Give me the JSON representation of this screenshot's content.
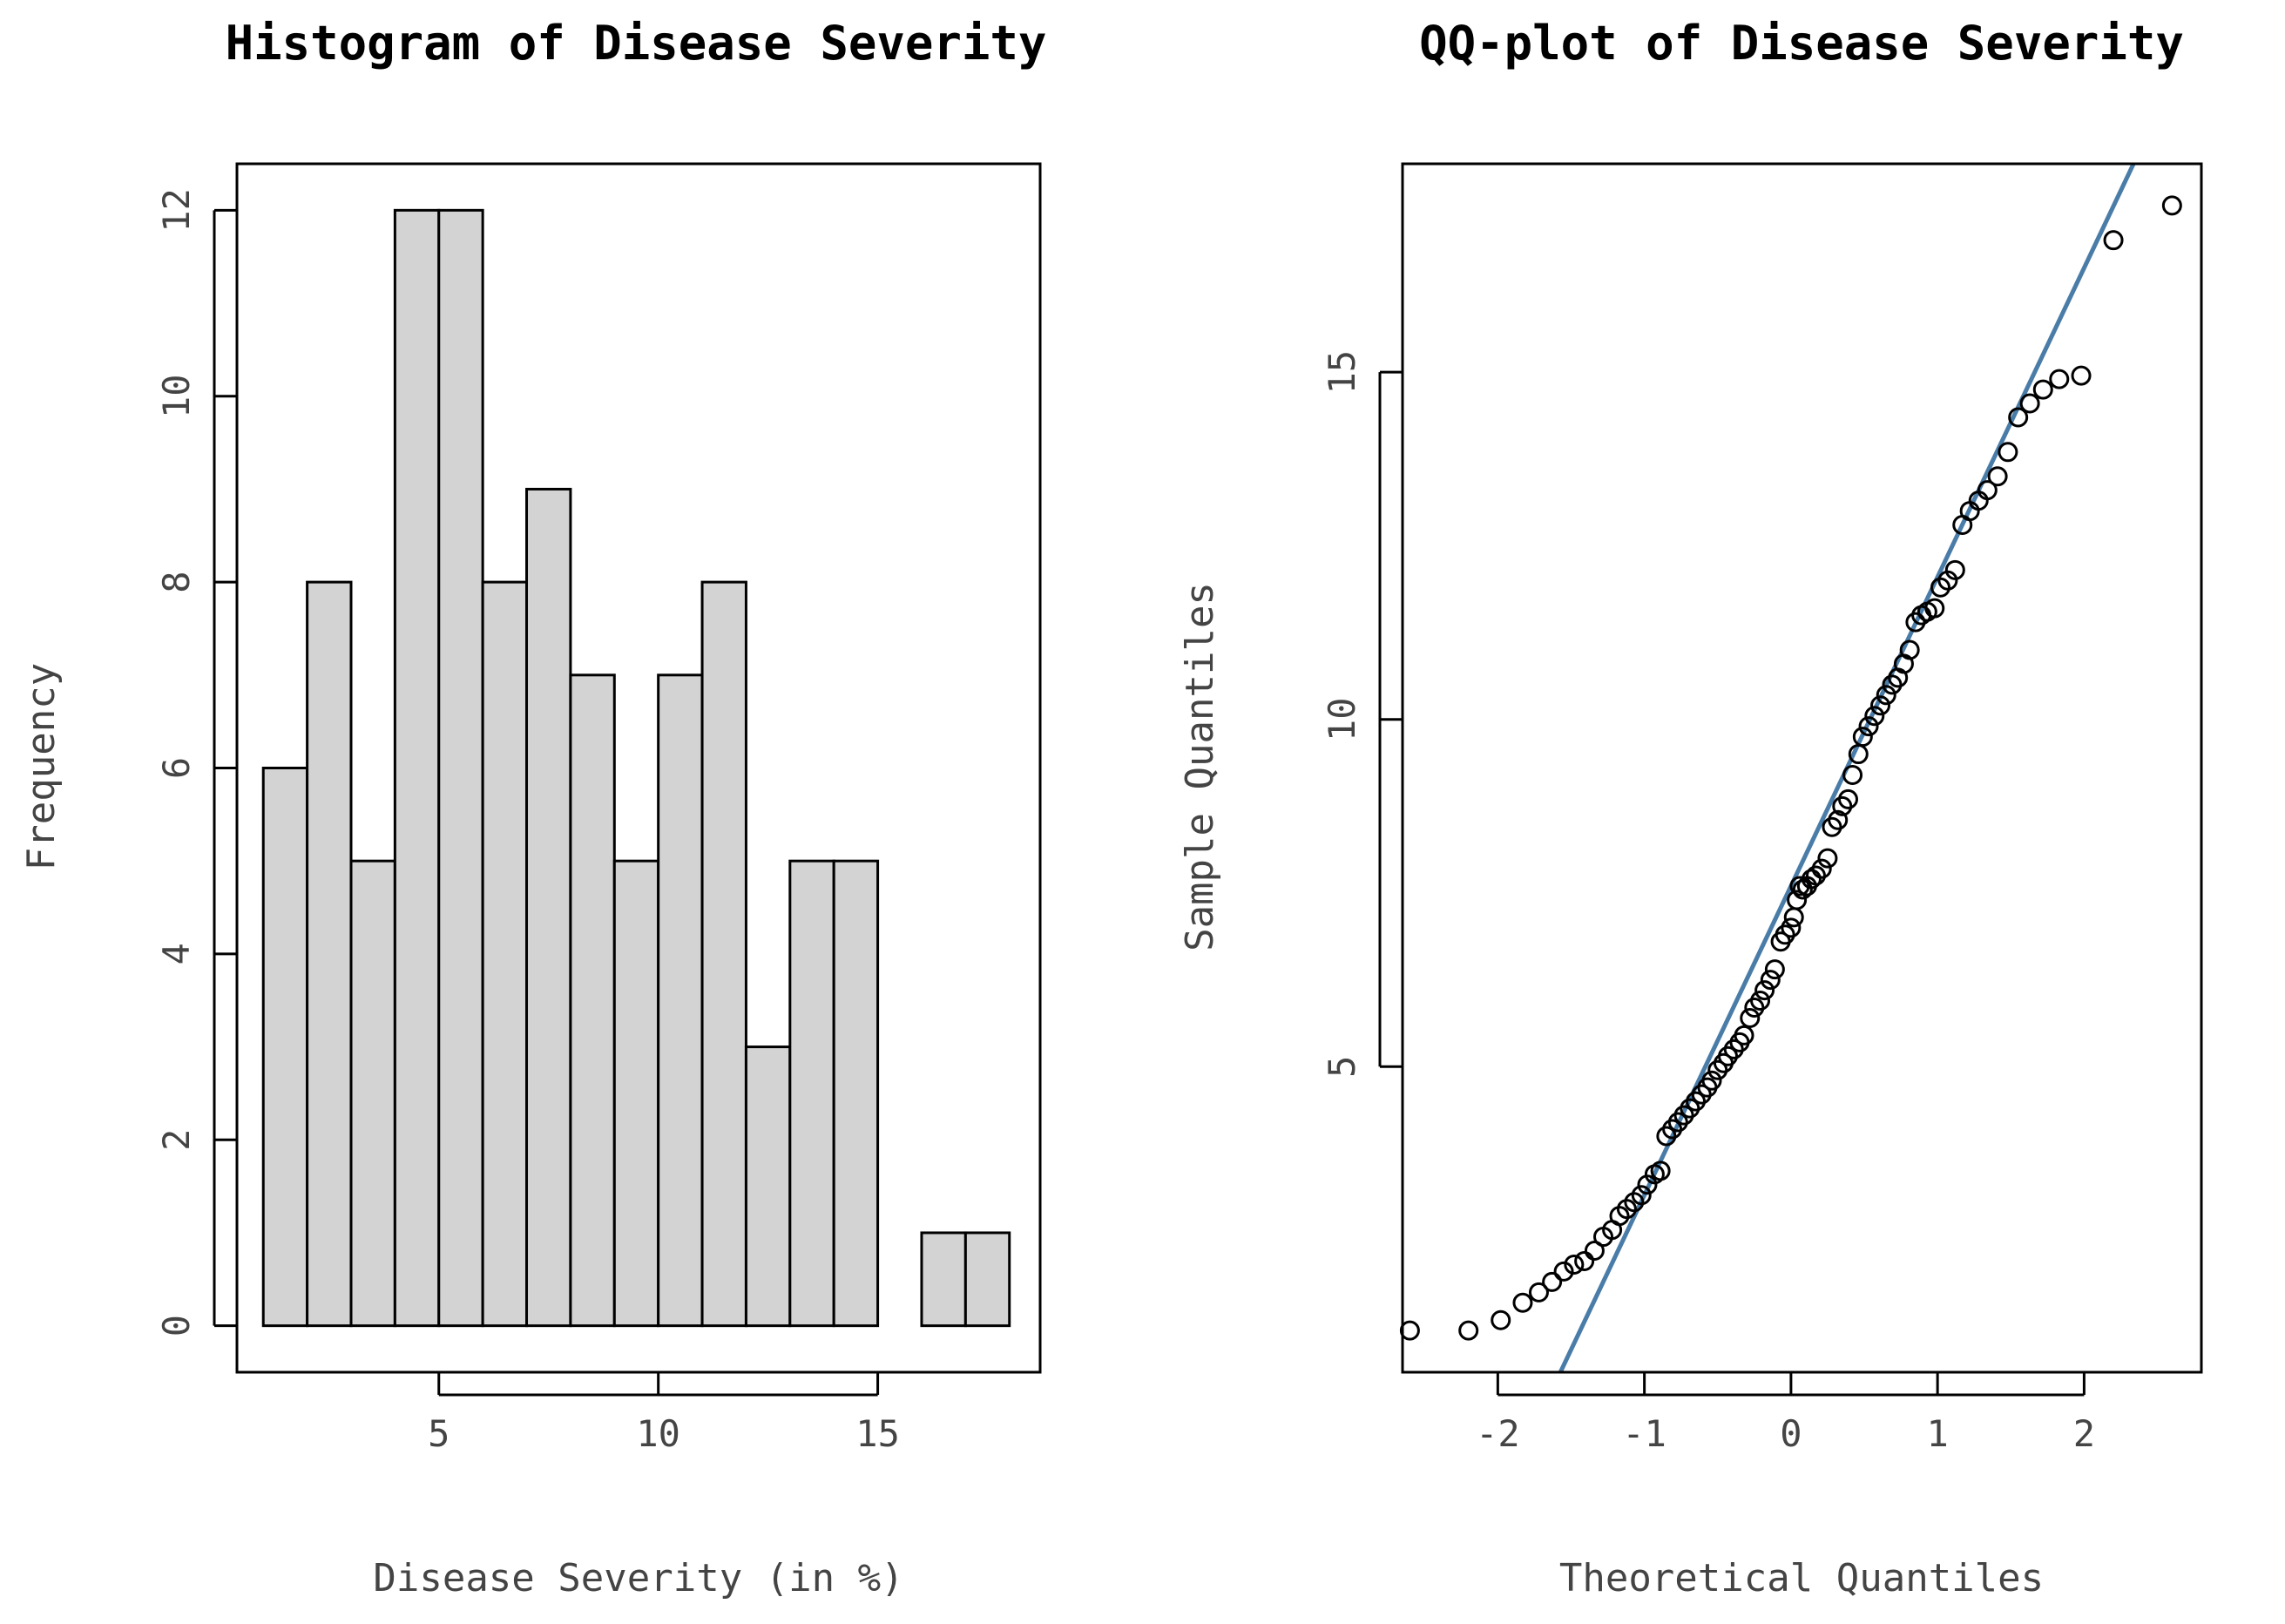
{
  "chart_data": [
    {
      "type": "bar",
      "subtype": "histogram",
      "title": "Histogram of Disease Severity",
      "xlabel": "Disease Severity (in %)",
      "ylabel": "Frequency",
      "bin_edges": [
        1,
        2,
        3,
        4,
        5,
        6,
        7,
        8,
        9,
        10,
        11,
        12,
        13,
        14,
        15,
        16,
        17,
        18
      ],
      "values": [
        6,
        8,
        5,
        12,
        12,
        8,
        9,
        7,
        5,
        7,
        8,
        3,
        5,
        5,
        0,
        1,
        1
      ],
      "xlim": [
        0.4,
        18.7
      ],
      "ylim": [
        -0.5,
        12.5
      ],
      "xticks": [
        5,
        10,
        15
      ],
      "xtick_labels": [
        "5",
        "10",
        "15"
      ],
      "yticks": [
        0,
        2,
        4,
        6,
        8,
        10,
        12
      ],
      "ytick_labels": [
        "0",
        "2",
        "4",
        "6",
        "8",
        "10",
        "12"
      ],
      "bar_color": "#d3d3d3",
      "grid": false
    },
    {
      "type": "scatter",
      "subtype": "qq-plot",
      "title": "QQ-plot of Disease Severity",
      "xlabel": "Theoretical Quantiles",
      "ylabel": "Sample Quantiles",
      "xlim": [
        -2.65,
        2.8
      ],
      "ylim": [
        0.6,
        18.0
      ],
      "xticks": [
        -2,
        -1,
        0,
        1,
        2
      ],
      "xtick_labels": [
        "-2",
        "-1",
        "0",
        "1",
        "2"
      ],
      "yticks": [
        5,
        10,
        15
      ],
      "ytick_labels": [
        "5",
        "10",
        "15"
      ],
      "reference_line": {
        "intercept": 7.6,
        "slope": 4.45,
        "color": "#4a7ca8"
      },
      "points": [
        [
          -2.6,
          1.2
        ],
        [
          -2.2,
          1.2
        ],
        [
          -1.98,
          1.35
        ],
        [
          -1.83,
          1.6
        ],
        [
          -1.72,
          1.75
        ],
        [
          -1.63,
          1.9
        ],
        [
          -1.55,
          2.05
        ],
        [
          -1.48,
          2.15
        ],
        [
          -1.41,
          2.2
        ],
        [
          -1.34,
          2.35
        ],
        [
          -1.28,
          2.55
        ],
        [
          -1.22,
          2.65
        ],
        [
          -1.17,
          2.85
        ],
        [
          -1.12,
          2.95
        ],
        [
          -1.07,
          3.05
        ],
        [
          -1.02,
          3.15
        ],
        [
          -0.98,
          3.3
        ],
        [
          -0.93,
          3.45
        ],
        [
          -0.89,
          3.5
        ],
        [
          -0.85,
          4.0
        ],
        [
          -0.81,
          4.1
        ],
        [
          -0.77,
          4.2
        ],
        [
          -0.73,
          4.3
        ],
        [
          -0.69,
          4.4
        ],
        [
          -0.65,
          4.5
        ],
        [
          -0.61,
          4.6
        ],
        [
          -0.57,
          4.7
        ],
        [
          -0.54,
          4.8
        ],
        [
          -0.5,
          4.95
        ],
        [
          -0.46,
          5.05
        ],
        [
          -0.43,
          5.15
        ],
        [
          -0.39,
          5.25
        ],
        [
          -0.35,
          5.35
        ],
        [
          -0.32,
          5.45
        ],
        [
          -0.28,
          5.7
        ],
        [
          -0.25,
          5.85
        ],
        [
          -0.21,
          5.95
        ],
        [
          -0.18,
          6.1
        ],
        [
          -0.14,
          6.25
        ],
        [
          -0.11,
          6.4
        ],
        [
          -0.07,
          6.8
        ],
        [
          -0.04,
          6.9
        ],
        [
          0.0,
          7.0
        ],
        [
          0.02,
          7.15
        ],
        [
          0.04,
          7.4
        ],
        [
          0.06,
          7.6
        ],
        [
          0.08,
          7.55
        ],
        [
          0.11,
          7.6
        ],
        [
          0.14,
          7.7
        ],
        [
          0.17,
          7.75
        ],
        [
          0.21,
          7.85
        ],
        [
          0.25,
          8.0
        ],
        [
          0.28,
          8.45
        ],
        [
          0.32,
          8.55
        ],
        [
          0.35,
          8.75
        ],
        [
          0.39,
          8.85
        ],
        [
          0.42,
          9.2
        ],
        [
          0.46,
          9.5
        ],
        [
          0.49,
          9.75
        ],
        [
          0.53,
          9.9
        ],
        [
          0.57,
          10.05
        ],
        [
          0.61,
          10.2
        ],
        [
          0.65,
          10.35
        ],
        [
          0.69,
          10.5
        ],
        [
          0.73,
          10.6
        ],
        [
          0.77,
          10.8
        ],
        [
          0.81,
          11.0
        ],
        [
          0.85,
          11.4
        ],
        [
          0.89,
          11.5
        ],
        [
          0.93,
          11.55
        ],
        [
          0.98,
          11.6
        ],
        [
          1.02,
          11.9
        ],
        [
          1.07,
          12.0
        ],
        [
          1.12,
          12.15
        ],
        [
          1.17,
          12.8
        ],
        [
          1.22,
          13.0
        ],
        [
          1.28,
          13.15
        ],
        [
          1.34,
          13.3
        ],
        [
          1.41,
          13.5
        ],
        [
          1.48,
          13.85
        ],
        [
          1.55,
          14.35
        ],
        [
          1.63,
          14.55
        ],
        [
          1.72,
          14.75
        ],
        [
          1.83,
          14.9
        ],
        [
          1.98,
          14.95
        ],
        [
          2.2,
          16.9
        ],
        [
          2.6,
          17.4
        ]
      ]
    }
  ]
}
